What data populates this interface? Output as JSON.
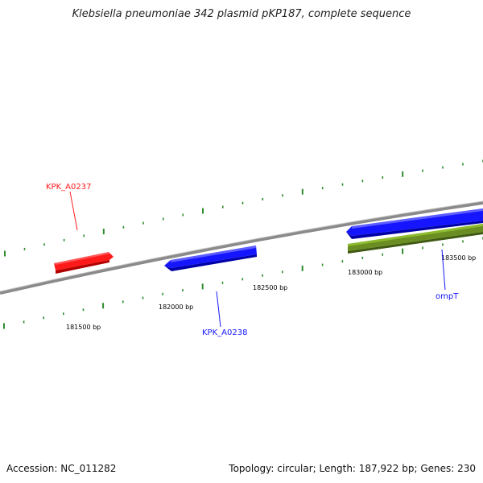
{
  "title": "Klebsiella pneumoniae 342 plasmid pKP187, complete sequence",
  "footer": {
    "accession": "Accession: NC_011282",
    "summary": "Topology: circular; Length: 187,922 bp; Genes: 230"
  },
  "colors": {
    "backbone": "#8a8a8a",
    "ticks": "#2e8b2e",
    "gene_red": "#ff1a1a",
    "gene_blue": "#1515ff",
    "gene_green": "#6b8e23"
  },
  "ruler": {
    "unit": "bp",
    "labeled_positions": [
      181500,
      182000,
      182500,
      183000,
      183500
    ],
    "labels": [
      "181500 bp",
      "182000 bp",
      "182500 bp",
      "183000 bp",
      "183500 bp"
    ]
  },
  "genes": [
    {
      "name": "KPK_A0237",
      "strand": "+",
      "color": "red",
      "labeled": true
    },
    {
      "name": "KPK_A0238",
      "strand": "-",
      "color": "blue",
      "labeled": true
    },
    {
      "name": "",
      "strand": "+",
      "color": "blue",
      "labeled": false
    },
    {
      "name": "ompT",
      "strand": "-",
      "color": "green",
      "labeled": true
    }
  ]
}
